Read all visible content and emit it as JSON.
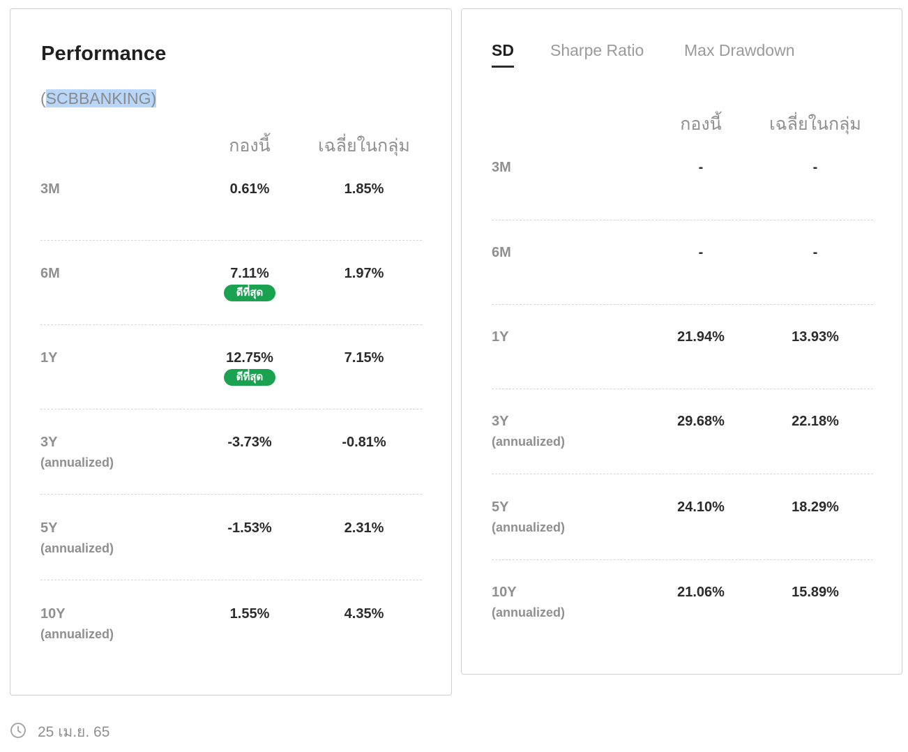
{
  "performance": {
    "title": "Performance",
    "fund_code_prefix": "(",
    "fund_code_highlight": "SCBBANKING)",
    "columns": [
      "กองนี้",
      "เฉลี่ยในกลุ่ม"
    ],
    "best_label": "ดีที่สุด",
    "rows": [
      {
        "period": "3M",
        "sub": "",
        "fund": "0.61%",
        "avg": "1.85%",
        "best": false
      },
      {
        "period": "6M",
        "sub": "",
        "fund": "7.11%",
        "avg": "1.97%",
        "best": true
      },
      {
        "period": "1Y",
        "sub": "",
        "fund": "12.75%",
        "avg": "7.15%",
        "best": true
      },
      {
        "period": "3Y",
        "sub": "(annualized)",
        "fund": "-3.73%",
        "avg": "-0.81%",
        "best": false
      },
      {
        "period": "5Y",
        "sub": "(annualized)",
        "fund": "-1.53%",
        "avg": "2.31%",
        "best": false
      },
      {
        "period": "10Y",
        "sub": "(annualized)",
        "fund": "1.55%",
        "avg": "4.35%",
        "best": false
      }
    ]
  },
  "risk": {
    "tabs": [
      {
        "label": "SD",
        "active": true
      },
      {
        "label": "Sharpe Ratio",
        "active": false
      },
      {
        "label": "Max Drawdown",
        "active": false
      }
    ],
    "columns": [
      "กองนี้",
      "เฉลี่ยในกลุ่ม"
    ],
    "rows": [
      {
        "period": "3M",
        "sub": "",
        "fund": "-",
        "avg": "-"
      },
      {
        "period": "6M",
        "sub": "",
        "fund": "-",
        "avg": "-"
      },
      {
        "period": "1Y",
        "sub": "",
        "fund": "21.94%",
        "avg": "13.93%"
      },
      {
        "period": "3Y",
        "sub": "(annualized)",
        "fund": "29.68%",
        "avg": "22.18%"
      },
      {
        "period": "5Y",
        "sub": "(annualized)",
        "fund": "24.10%",
        "avg": "18.29%"
      },
      {
        "period": "10Y",
        "sub": "(annualized)",
        "fund": "21.06%",
        "avg": "15.89%"
      }
    ]
  },
  "footer": {
    "date": "25 เม.ย. 65",
    "icon": "clock-icon"
  }
}
